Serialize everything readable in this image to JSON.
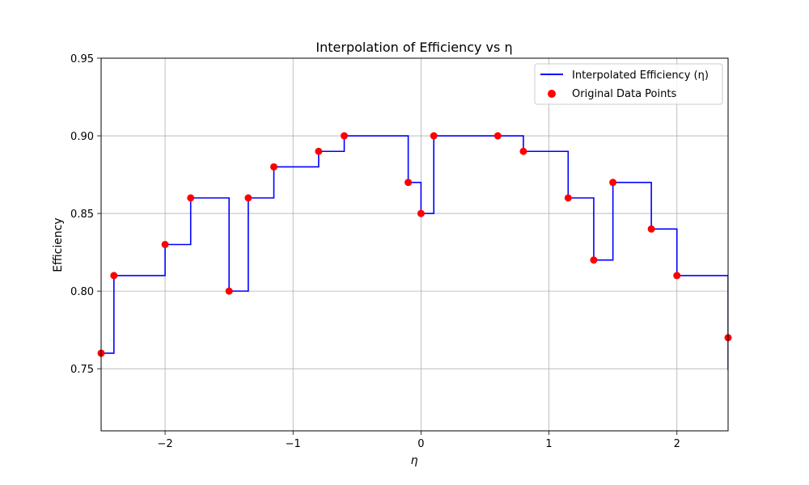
{
  "chart_data": {
    "type": "line",
    "title": "Interpolation of Efficiency vs η",
    "xlabel": "η",
    "ylabel": "Efficiency",
    "xlim": [
      -2.5,
      2.4
    ],
    "ylim": [
      0.71,
      0.95
    ],
    "x_ticks": [
      -2,
      -1,
      0,
      1,
      2
    ],
    "x_tick_labels": [
      "−2",
      "−1",
      "0",
      "1",
      "2"
    ],
    "y_ticks": [
      0.75,
      0.8,
      0.85,
      0.9,
      0.95
    ],
    "y_tick_labels": [
      "0.75",
      "0.80",
      "0.85",
      "0.90",
      "0.95"
    ],
    "grid": true,
    "legend_position": "top-right",
    "series": [
      {
        "name": "Interpolated Efficiency (η)",
        "style": "step-after line",
        "color": "#0000ff",
        "x": [
          -2.5,
          -2.4,
          -2.0,
          -1.8,
          -1.5,
          -1.35,
          -1.15,
          -0.8,
          -0.6,
          -0.1,
          0.0,
          0.1,
          0.6,
          0.8,
          1.15,
          1.35,
          1.5,
          1.8,
          2.0,
          2.4
        ],
        "y": [
          0.76,
          0.81,
          0.83,
          0.86,
          0.8,
          0.86,
          0.88,
          0.89,
          0.9,
          0.87,
          0.85,
          0.9,
          0.9,
          0.89,
          0.86,
          0.82,
          0.87,
          0.84,
          0.81,
          0.77
        ]
      },
      {
        "name": "Original Data Points",
        "style": "scatter",
        "color": "#ff0000",
        "x": [
          -2.5,
          -2.4,
          -2.0,
          -1.8,
          -1.5,
          -1.35,
          -1.15,
          -0.8,
          -0.6,
          -0.1,
          0.0,
          0.1,
          0.6,
          0.8,
          1.15,
          1.35,
          1.5,
          1.8,
          2.0,
          2.4
        ],
        "y": [
          0.76,
          0.81,
          0.83,
          0.86,
          0.8,
          0.86,
          0.88,
          0.89,
          0.9,
          0.87,
          0.85,
          0.9,
          0.9,
          0.89,
          0.86,
          0.82,
          0.87,
          0.84,
          0.81,
          0.77
        ]
      }
    ]
  }
}
